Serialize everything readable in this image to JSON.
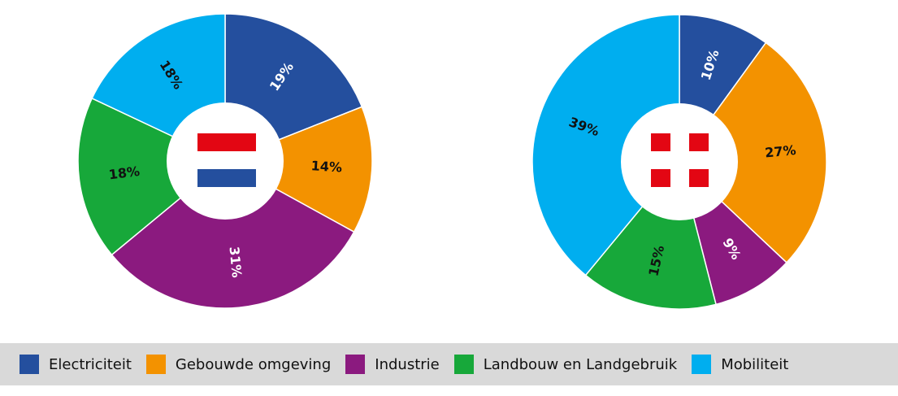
{
  "chart_data": [
    {
      "type": "pie",
      "categories": [
        "Electriciteit",
        "Gebouwde omgeving",
        "Industrie",
        "Landbouw en Landgebruik",
        "Mobiliteit"
      ],
      "values": [
        19,
        14,
        31,
        18,
        18
      ],
      "value_labels": [
        "19%",
        "14%",
        "31%",
        "18%",
        "18%"
      ],
      "colors": [
        "#244f9e",
        "#f39200",
        "#8b1a7f",
        "#17a83a",
        "#00aeef"
      ]
    },
    {
      "type": "pie",
      "categories": [
        "Electriciteit",
        "Gebouwde omgeving",
        "Industrie",
        "Landbouw en Landgebruik",
        "Mobiliteit"
      ],
      "values": [
        10,
        27,
        9,
        15,
        39
      ],
      "value_labels": [
        "10%",
        "27%",
        "9%",
        "15%",
        "39%"
      ],
      "colors": [
        "#244f9e",
        "#f39200",
        "#8b1a7f",
        "#17a83a",
        "#00aeef"
      ]
    }
  ]
}
